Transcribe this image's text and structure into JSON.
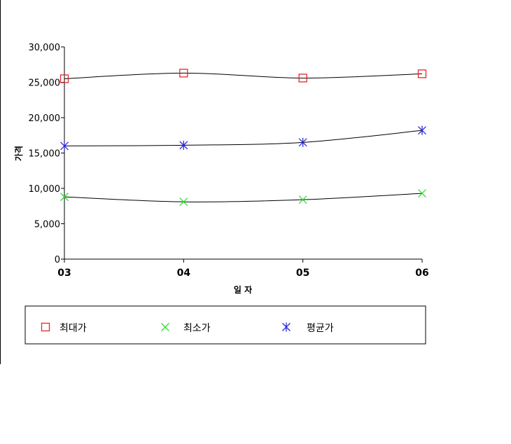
{
  "chart_data": {
    "type": "line",
    "title": "",
    "xlabel": "일 자",
    "ylabel": "가격",
    "categories": [
      "03",
      "04",
      "05",
      "06"
    ],
    "ylim": [
      0,
      30000
    ],
    "yticks": [
      "0",
      "5,000",
      "10,000",
      "15,000",
      "20,000",
      "25,000",
      "30,000"
    ],
    "ytick_values": [
      0,
      5000,
      10000,
      15000,
      20000,
      25000,
      30000
    ],
    "grid": false,
    "legend_position": "bottom",
    "series": [
      {
        "name": "최대가",
        "values": [
          25500,
          26300,
          25600,
          26200
        ],
        "color": "#e8262a",
        "marker": "square"
      },
      {
        "name": "최소가",
        "values": [
          8800,
          8100,
          8400,
          9300
        ],
        "color": "#33dd33",
        "marker": "x"
      },
      {
        "name": "평균가",
        "values": [
          16000,
          16100,
          16500,
          18200
        ],
        "color": "#2a2ae0",
        "marker": "asterisk"
      }
    ]
  }
}
